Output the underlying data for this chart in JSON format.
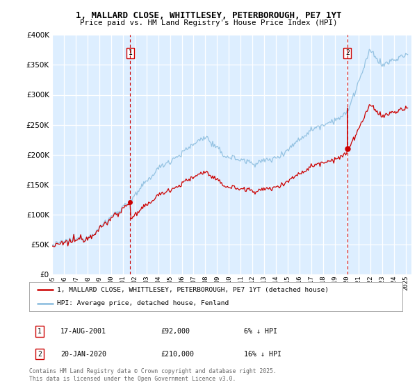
{
  "title1": "1, MALLARD CLOSE, WHITTLESEY, PETERBOROUGH, PE7 1YT",
  "title2": "Price paid vs. HM Land Registry's House Price Index (HPI)",
  "legend_line1": "1, MALLARD CLOSE, WHITTLESEY, PETERBOROUGH, PE7 1YT (detached house)",
  "legend_line2": "HPI: Average price, detached house, Fenland",
  "annotation1": {
    "label": "1",
    "date_str": "17-AUG-2001",
    "price_str": "£92,000",
    "note": "6% ↓ HPI",
    "year": 2001.63
  },
  "annotation2": {
    "label": "2",
    "date_str": "20-JAN-2020",
    "price_str": "£210,000",
    "note": "16% ↓ HPI",
    "year": 2020.05
  },
  "footer1": "Contains HM Land Registry data © Crown copyright and database right 2025.",
  "footer2": "This data is licensed under the Open Government Licence v3.0.",
  "ylim": [
    0,
    400000
  ],
  "yticks": [
    0,
    50000,
    100000,
    150000,
    200000,
    250000,
    300000,
    350000,
    400000
  ],
  "background_color": "#ddeeff",
  "red_line_color": "#cc0000",
  "blue_line_color": "#88bbdd",
  "grid_color": "#ffffff",
  "t1_year": 2001.63,
  "t2_year": 2020.05,
  "t1_price": 92000,
  "t2_price": 210000,
  "start_year": 1995,
  "end_year": 2025
}
